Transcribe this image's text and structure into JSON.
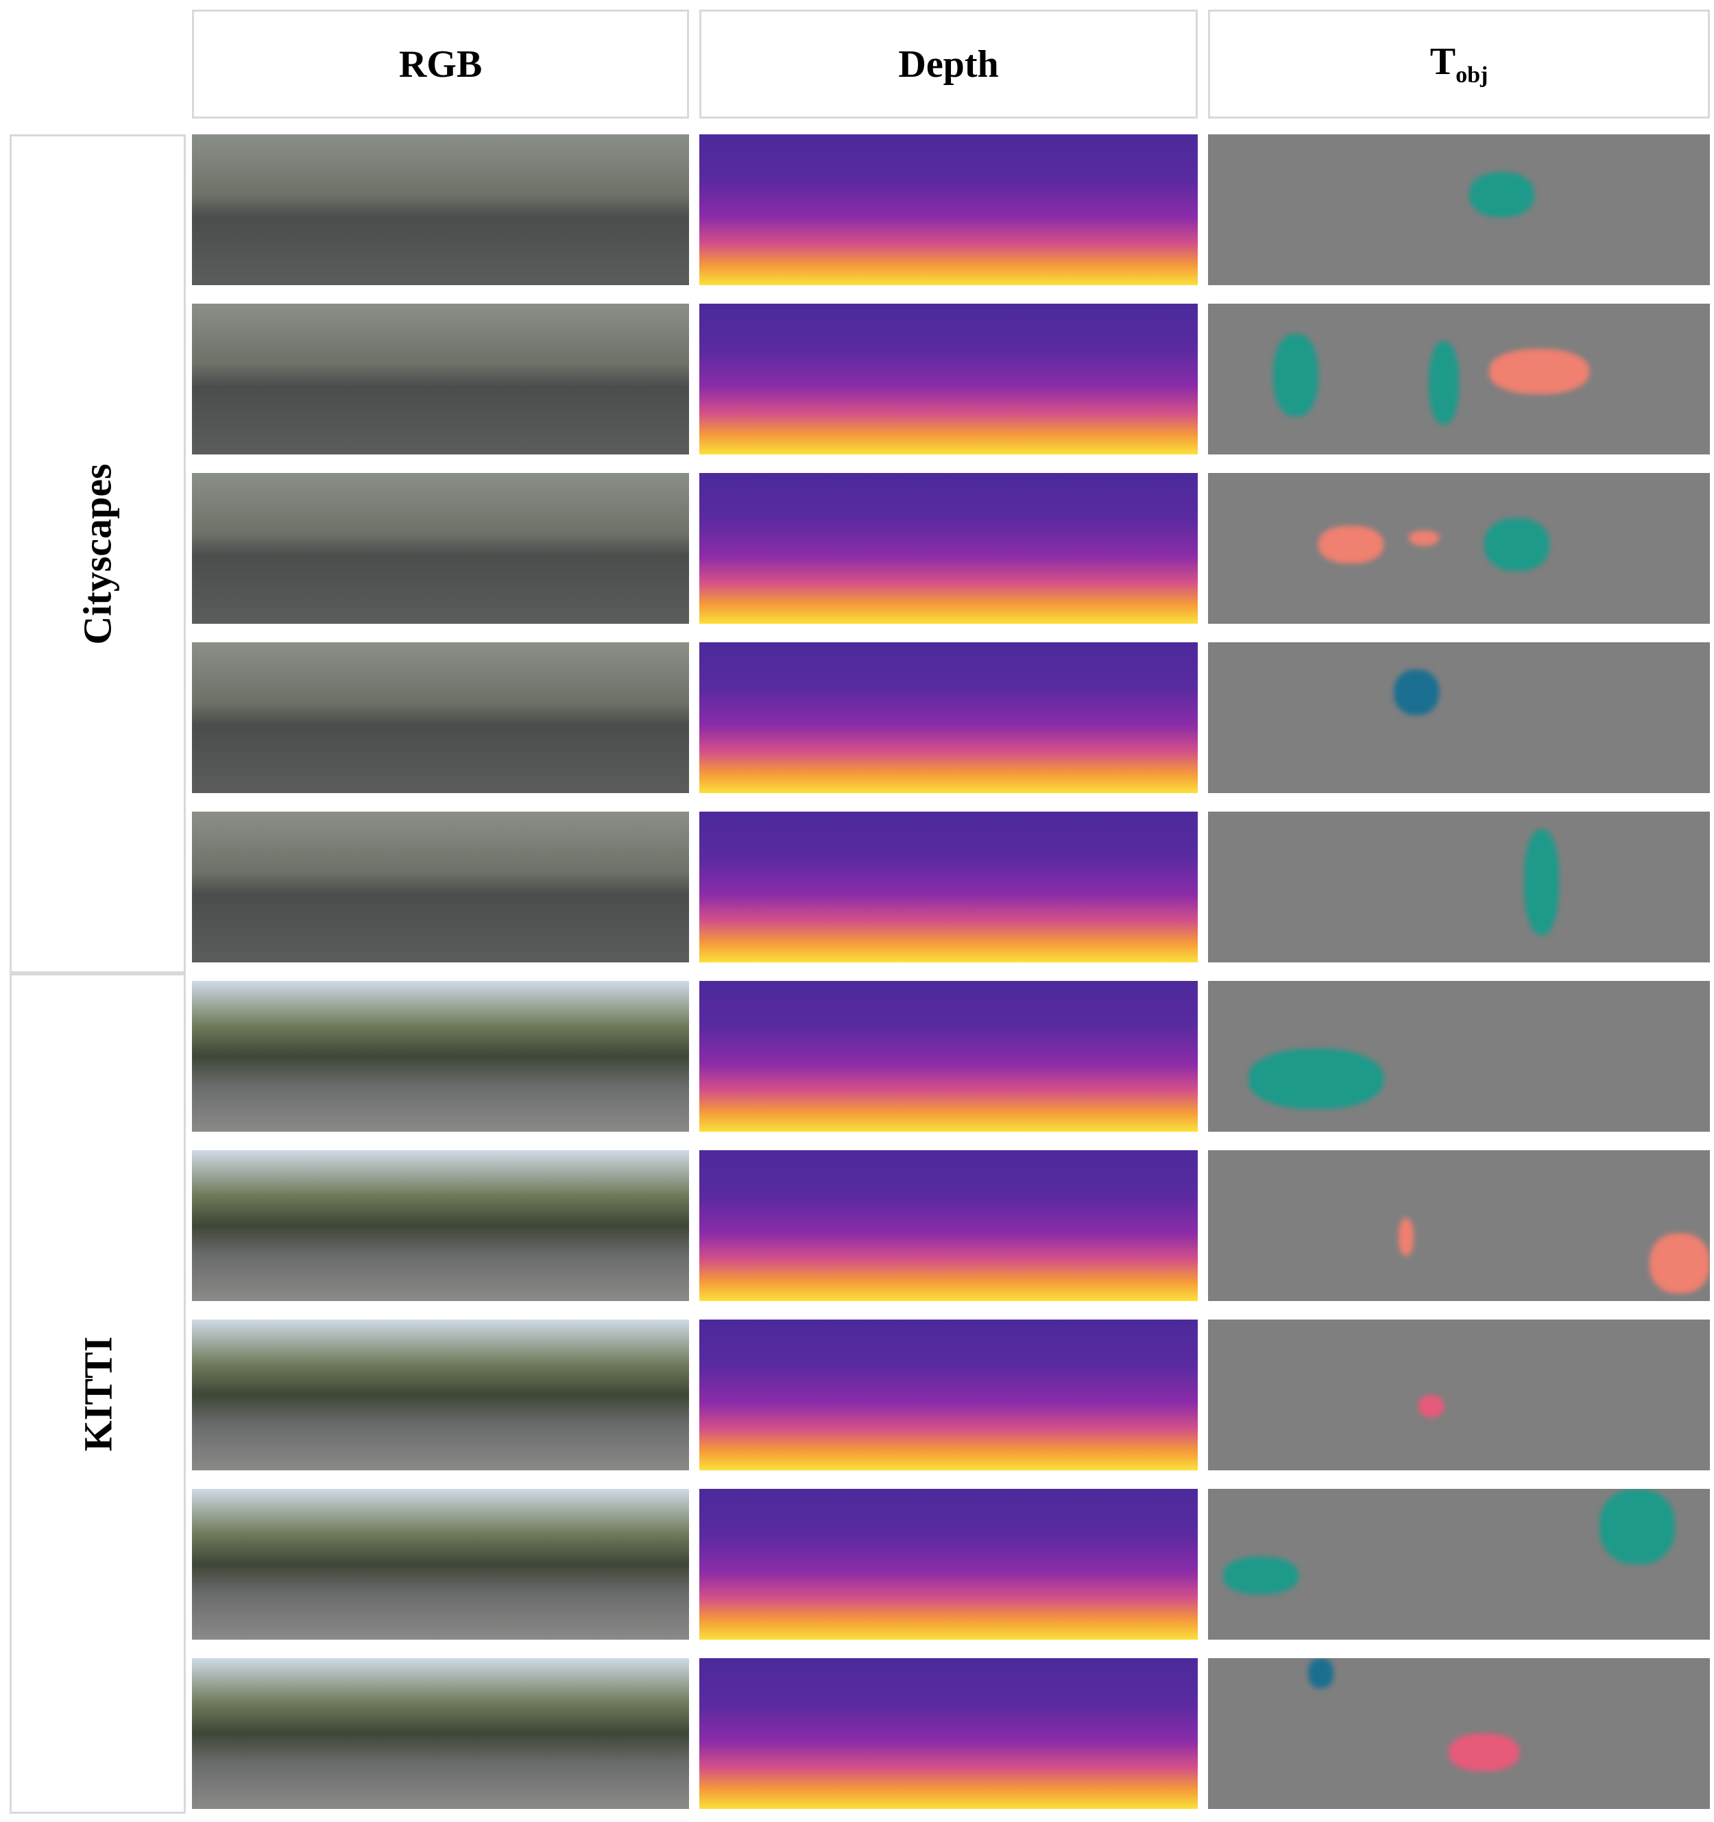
{
  "header": {
    "columns": [
      "RGB",
      "Depth",
      {
        "main": "T",
        "subscript": "obj"
      }
    ]
  },
  "datasets": [
    "Cityscapes",
    "KITTI"
  ]
}
